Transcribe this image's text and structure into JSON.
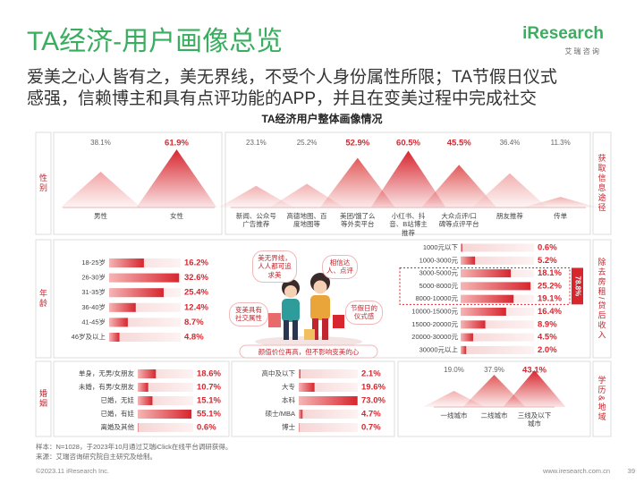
{
  "header": {
    "title": "TA经济-用户画像总览",
    "logo": "iResearch",
    "logo_sub": "艾 瑞 咨 询",
    "subtitle": [
      "爱美之心人皆有之，美无界线，不受个人身份属性所限；TA节假日仪式",
      "感强，信赖博主和具有点评功能的APP，并且在变美过程中完成社交"
    ]
  },
  "panel_title": "TA经济用户整体画像情况",
  "side_labels": [
    "性别",
    "年龄",
    "婚姻",
    "获取信息途径",
    "除去房租/贷后收入",
    "学历&地域"
  ],
  "illustration": {
    "bubbles": [
      "美无界线，人人都可追求美",
      "相信达人、点评",
      "变美具有社交属性",
      "节假日的仪式感"
    ],
    "caption": "颜值价位再高，但不影响变美的心"
  },
  "footer": {
    "note": "样本：N=1028，于2023年10月通过艾瑞iClick在线平台调研获得。",
    "source": "来源：艾瑞咨询研究院自主研究及绘制。",
    "copyright": "©2023.11 iResearch Inc.",
    "url": "www.iresearch.com.cn",
    "page": "39"
  },
  "chart_data": [
    {
      "type": "mountain",
      "categories": [
        "男性",
        "女性"
      ],
      "values": [
        38.1,
        61.9
      ],
      "value_labels": [
        "38.1%",
        "61.9%"
      ],
      "colors": [
        "#f2a5a5",
        "#d7262e"
      ],
      "label_colors": [
        "#666666",
        "#d7262e"
      ]
    },
    {
      "type": "mountain",
      "categories": [
        "新闻、公众号广告推荐",
        "高德地图、百度地图等",
        "美团/饿了么等外卖平台",
        "小红书、抖音、B站博主推荐",
        "大众点评/口碑等点评平台",
        "朋友推荐",
        "传单"
      ],
      "values": [
        23.1,
        25.2,
        52.9,
        60.5,
        45.5,
        36.4,
        11.3
      ],
      "value_labels": [
        "23.1%",
        "25.2%",
        "52.9%",
        "60.5%",
        "45.5%",
        "36.4%",
        "11.3%"
      ],
      "colors": [
        "#f2b0b0",
        "#f2b0b0",
        "#e25a5a",
        "#d7262e",
        "#e25a5a",
        "#f2b0b0",
        "#f2b0b0"
      ],
      "label_colors": [
        "#666666",
        "#666666",
        "#d7262e",
        "#d7262e",
        "#d7262e",
        "#666666",
        "#666666"
      ]
    },
    {
      "type": "hbar",
      "categories": [
        "18-25岁",
        "26-30岁",
        "31-35岁",
        "36-40岁",
        "41-45岁",
        "46岁及以上"
      ],
      "values": [
        16.2,
        32.6,
        25.4,
        12.4,
        8.7,
        4.8
      ],
      "value_labels": [
        "16.2%",
        "32.6%",
        "25.4%",
        "12.4%",
        "8.7%",
        "4.8%"
      ]
    },
    {
      "type": "hbar",
      "categories": [
        "1000元以下",
        "1000-3000元",
        "3000-5000元",
        "5000-8000元",
        "8000-10000元",
        "10000-15000元",
        "15000-20000元",
        "20000-30000元",
        "30000元以上"
      ],
      "values": [
        0.6,
        5.2,
        18.1,
        25.2,
        19.1,
        16.4,
        8.9,
        4.5,
        2.0
      ],
      "value_labels": [
        "0.6%",
        "5.2%",
        "18.1%",
        "25.2%",
        "19.1%",
        "16.4%",
        "8.9%",
        "4.5%",
        "2.0%"
      ],
      "annotation": {
        "value": 78.8,
        "label": "78.8%"
      }
    },
    {
      "type": "hbar",
      "categories": [
        "单身，无男/女朋友",
        "未婚，有男/女朋友",
        "已婚，无娃",
        "已婚，有娃",
        "离婚及其他"
      ],
      "values": [
        18.6,
        10.7,
        15.1,
        55.1,
        0.6
      ],
      "value_labels": [
        "18.6%",
        "10.7%",
        "15.1%",
        "55.1%",
        "0.6%"
      ]
    },
    {
      "type": "hbar",
      "categories": [
        "高中及以下",
        "大专",
        "本科",
        "硕士/MBA",
        "博士"
      ],
      "values": [
        2.1,
        19.6,
        73.0,
        4.7,
        0.7
      ],
      "value_labels": [
        "2.1%",
        "19.6%",
        "73.0%",
        "4.7%",
        "0.7%"
      ]
    },
    {
      "type": "mountain",
      "categories": [
        "一线城市",
        "二线城市",
        "三线及以下城市"
      ],
      "values": [
        19.0,
        37.9,
        43.1
      ],
      "value_labels": [
        "19.0%",
        "37.9%",
        "43.1%"
      ],
      "colors": [
        "#f2b0b0",
        "#e25a5a",
        "#d7262e"
      ],
      "label_colors": [
        "#666666",
        "#666666",
        "#d7262e"
      ]
    }
  ]
}
